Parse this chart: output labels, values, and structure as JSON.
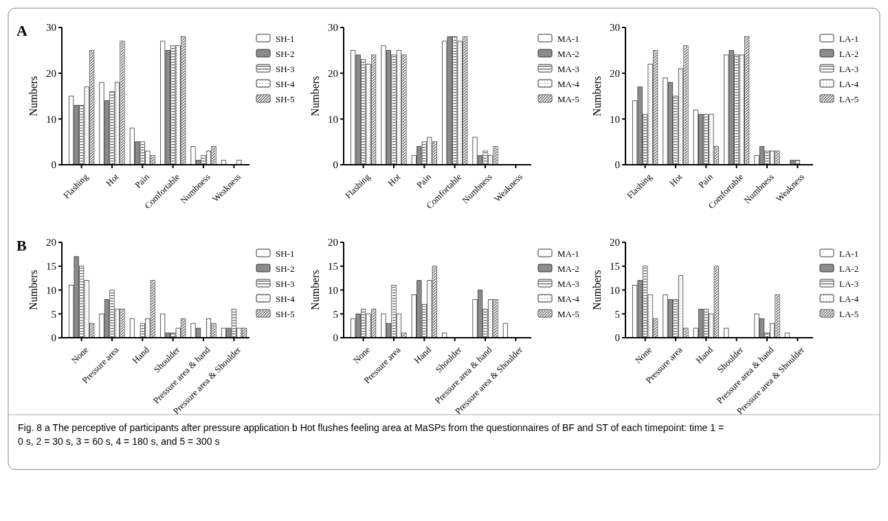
{
  "chart_data": [
    {
      "type": "bar",
      "annotations": [
        "A"
      ],
      "ylabel": "Numbers",
      "categories": [
        "Flashing",
        "Hot",
        "Pain",
        "Comfortable",
        "Numbness",
        "Weakness"
      ],
      "ylim": [
        0,
        30
      ],
      "yticks": [
        0,
        10,
        20,
        30
      ],
      "legend": "right",
      "series": [
        {
          "name": "SH-1",
          "color": "#ffffff",
          "values": [
            15,
            18,
            8,
            27,
            4,
            1
          ]
        },
        {
          "name": "SH-2",
          "color": "#8c8c8c",
          "values": [
            13,
            14,
            5,
            25,
            1,
            0
          ]
        },
        {
          "name": "SH-3",
          "color": "#ffffff",
          "values": [
            13,
            16,
            5,
            26,
            2,
            0
          ]
        },
        {
          "name": "SH-4",
          "color": "#ffffff",
          "values": [
            17,
            18,
            3,
            26,
            3,
            1
          ]
        },
        {
          "name": "SH-5",
          "color": "#ffffff",
          "values": [
            25,
            27,
            2,
            28,
            4,
            0
          ]
        }
      ]
    },
    {
      "type": "bar",
      "ylabel": "Numbers",
      "categories": [
        "Flashing",
        "Hot",
        "Pain",
        "Comfortable",
        "Numbness",
        "Weakness"
      ],
      "ylim": [
        0,
        30
      ],
      "yticks": [
        0,
        10,
        20,
        30
      ],
      "legend": "right",
      "series": [
        {
          "name": "MA-1",
          "color": "#ffffff",
          "values": [
            25,
            26,
            2,
            27,
            6,
            0
          ]
        },
        {
          "name": "MA-2",
          "color": "#8c8c8c",
          "values": [
            24,
            25,
            4,
            28,
            2,
            0
          ]
        },
        {
          "name": "MA-3",
          "color": "#ffffff",
          "values": [
            23,
            24,
            5,
            28,
            3,
            0
          ]
        },
        {
          "name": "MA-4",
          "color": "#ffffff",
          "values": [
            22,
            25,
            6,
            27,
            2,
            0
          ]
        },
        {
          "name": "MA-5",
          "color": "#ffffff",
          "values": [
            24,
            24,
            5,
            28,
            4,
            0
          ]
        }
      ]
    },
    {
      "type": "bar",
      "ylabel": "Numbers",
      "categories": [
        "Flashing",
        "Hot",
        "Pain",
        "Comfortable",
        "Numbness",
        "Weakness"
      ],
      "ylim": [
        0,
        30
      ],
      "yticks": [
        0,
        10,
        20,
        30
      ],
      "legend": "right",
      "series": [
        {
          "name": "LA-1",
          "color": "#ffffff",
          "values": [
            14,
            19,
            12,
            24,
            2,
            0
          ]
        },
        {
          "name": "LA-2",
          "color": "#8c8c8c",
          "values": [
            17,
            18,
            11,
            25,
            4,
            1
          ]
        },
        {
          "name": "LA-3",
          "color": "#ffffff",
          "values": [
            11,
            15,
            11,
            24,
            3,
            1
          ]
        },
        {
          "name": "LA-4",
          "color": "#ffffff",
          "values": [
            22,
            21,
            11,
            24,
            3,
            0
          ]
        },
        {
          "name": "LA-5",
          "color": "#ffffff",
          "values": [
            25,
            26,
            4,
            28,
            3,
            0
          ]
        }
      ]
    },
    {
      "type": "bar",
      "annotations": [
        "B"
      ],
      "ylabel": "Numbers",
      "categories": [
        "None",
        "Pressure area",
        "Hand",
        "Shoulder",
        "Pressure area & hand",
        "Pressure area & Shoulder"
      ],
      "ylim": [
        0,
        20
      ],
      "yticks": [
        0,
        5,
        10,
        15,
        20
      ],
      "legend": "right",
      "series": [
        {
          "name": "SH-1",
          "color": "#ffffff",
          "values": [
            11,
            5,
            4,
            5,
            3,
            2
          ]
        },
        {
          "name": "SH-2",
          "color": "#8c8c8c",
          "values": [
            17,
            8,
            0,
            1,
            2,
            2
          ]
        },
        {
          "name": "SH-3",
          "color": "#ffffff",
          "values": [
            15,
            10,
            3,
            1,
            0,
            6
          ]
        },
        {
          "name": "SH-4",
          "color": "#ffffff",
          "values": [
            12,
            6,
            4,
            2,
            4,
            2
          ]
        },
        {
          "name": "SH-5",
          "color": "#ffffff",
          "values": [
            3,
            6,
            12,
            4,
            3,
            2
          ]
        }
      ]
    },
    {
      "type": "bar",
      "ylabel": "Numbers",
      "categories": [
        "None",
        "Pressure area",
        "Hand",
        "Shoulder",
        "Pressure area & hand",
        "Pressure area & Shoulder"
      ],
      "ylim": [
        0,
        20
      ],
      "yticks": [
        0,
        5,
        10,
        15,
        20
      ],
      "legend": "right",
      "series": [
        {
          "name": "MA-1",
          "color": "#ffffff",
          "values": [
            4,
            5,
            9,
            1,
            8,
            3
          ]
        },
        {
          "name": "MA-2",
          "color": "#8c8c8c",
          "values": [
            5,
            3,
            12,
            0,
            10,
            0
          ]
        },
        {
          "name": "MA-3",
          "color": "#ffffff",
          "values": [
            6,
            11,
            7,
            0,
            6,
            0
          ]
        },
        {
          "name": "MA-4",
          "color": "#ffffff",
          "values": [
            5,
            5,
            12,
            0,
            8,
            0
          ]
        },
        {
          "name": "MA-5",
          "color": "#ffffff",
          "values": [
            6,
            1,
            15,
            0,
            8,
            0
          ]
        }
      ]
    },
    {
      "type": "bar",
      "annotations": [
        "Fig. 8 a The perceptive of participants after pressure application b Hot flushes feeling area at MaSPs from the questionnaires of BF and ST of each timepoint: time 1 = 0 s, 2 = 30 s, 3 = 60 s, 4 = 180 s, and 5 = 300 s"
      ],
      "ylabel": "Numbers",
      "categories": [
        "None",
        "Pressure area",
        "Hand",
        "Shoulder",
        "Pressure area & hand",
        "Pressure area & Shoulder"
      ],
      "ylim": [
        0,
        20
      ],
      "yticks": [
        0,
        5,
        10,
        15,
        20
      ],
      "legend": "right",
      "series": [
        {
          "name": "LA-1",
          "color": "#ffffff",
          "values": [
            11,
            9,
            2,
            2,
            5,
            1
          ]
        },
        {
          "name": "LA-2",
          "color": "#8c8c8c",
          "values": [
            12,
            8,
            6,
            0,
            4,
            0
          ]
        },
        {
          "name": "LA-3",
          "color": "#ffffff",
          "values": [
            15,
            8,
            6,
            0,
            1,
            0
          ]
        },
        {
          "name": "LA-4",
          "color": "#ffffff",
          "values": [
            9,
            13,
            5,
            0,
            3,
            0
          ]
        },
        {
          "name": "LA-5",
          "color": "#ffffff",
          "values": [
            4,
            2,
            15,
            0,
            9,
            0
          ]
        }
      ]
    }
  ]
}
